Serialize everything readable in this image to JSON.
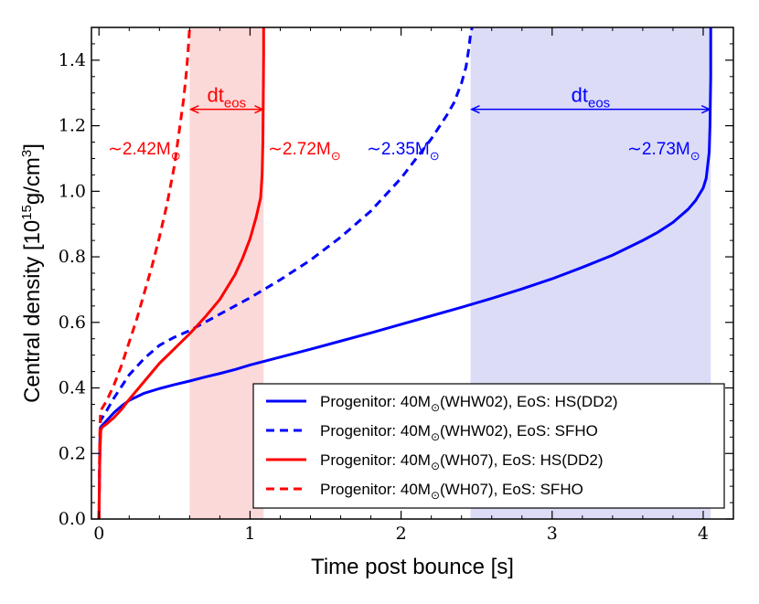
{
  "chart_data": {
    "type": "line",
    "xlabel": "Time post bounce [s]",
    "ylabel": "Central density [10",
    "ylabel_sup": "15",
    "ylabel_unit": "g/cm",
    "ylabel_unit_sup": "3",
    "ylabel_end": "]",
    "xlim": [
      -0.05,
      4.2
    ],
    "ylim": [
      0.0,
      1.5
    ],
    "xticks": [
      0,
      1,
      2,
      3,
      4
    ],
    "xtick_labels": [
      "0",
      "1",
      "2",
      "3",
      "4"
    ],
    "yticks": [
      0.0,
      0.2,
      0.4,
      0.6,
      0.8,
      1.0,
      1.2,
      1.4
    ],
    "ytick_labels": [
      "0.0",
      "0.2",
      "0.4",
      "0.6",
      "0.8",
      "1.0",
      "1.2",
      "1.4"
    ],
    "colors": {
      "red": "#ff0000",
      "blue": "#0000ff",
      "red_band": "#fcd9d9",
      "blue_band": "#dcdcf7"
    },
    "bands": [
      {
        "name": "red-band",
        "x0": 0.6,
        "x1": 1.09,
        "color": "#fcd9d9"
      },
      {
        "name": "blue-band",
        "x0": 2.46,
        "x1": 4.05,
        "color": "#dcdcf7"
      }
    ],
    "series": [
      {
        "name": "Progenitor: 40M☉(WHW02), EoS: HS(DD2)",
        "color": "#0000ff",
        "dash": false,
        "x": [
          0,
          0.003,
          0.006,
          0.01,
          0.03,
          0.06,
          0.1,
          0.15,
          0.2,
          0.3,
          0.4,
          0.5,
          0.6,
          0.7,
          0.8,
          0.9,
          1.0,
          1.2,
          1.4,
          1.6,
          1.8,
          2.0,
          2.2,
          2.4,
          2.6,
          2.8,
          3.0,
          3.2,
          3.4,
          3.6,
          3.7,
          3.8,
          3.9,
          3.95,
          4.0,
          4.02,
          4.03,
          4.04,
          4.045,
          4.05,
          4.05
        ],
        "y": [
          0.0,
          0.12,
          0.24,
          0.28,
          0.29,
          0.305,
          0.325,
          0.345,
          0.362,
          0.384,
          0.398,
          0.41,
          0.421,
          0.433,
          0.444,
          0.456,
          0.47,
          0.494,
          0.518,
          0.543,
          0.568,
          0.594,
          0.62,
          0.646,
          0.673,
          0.702,
          0.733,
          0.768,
          0.805,
          0.85,
          0.875,
          0.905,
          0.945,
          0.972,
          1.01,
          1.04,
          1.08,
          1.12,
          1.2,
          1.35,
          1.5
        ]
      },
      {
        "name": "Progenitor: 40M☉(WHW02), EoS: SFHO",
        "color": "#0000ff",
        "dash": true,
        "x": [
          0,
          0.005,
          0.01,
          0.05,
          0.1,
          0.2,
          0.3,
          0.4,
          0.5,
          0.6,
          0.7,
          0.8,
          0.9,
          1.0,
          1.2,
          1.4,
          1.6,
          1.8,
          2.0,
          2.1,
          2.2,
          2.3,
          2.35,
          2.4,
          2.43,
          2.45,
          2.46,
          2.47
        ],
        "y": [
          0.0,
          0.2,
          0.3,
          0.33,
          0.37,
          0.44,
          0.49,
          0.53,
          0.555,
          0.575,
          0.6,
          0.625,
          0.65,
          0.675,
          0.73,
          0.79,
          0.86,
          0.94,
          1.04,
          1.1,
          1.16,
          1.23,
          1.27,
          1.33,
          1.38,
          1.44,
          1.48,
          1.5
        ]
      },
      {
        "name": "Progenitor: 40M☉(WH07), EoS: HS(DD2)",
        "color": "#ff0000",
        "dash": false,
        "x": [
          0,
          0.004,
          0.008,
          0.012,
          0.02,
          0.05,
          0.1,
          0.15,
          0.2,
          0.3,
          0.4,
          0.5,
          0.6,
          0.7,
          0.8,
          0.9,
          0.95,
          1.0,
          1.04,
          1.07,
          1.08,
          1.085,
          1.088,
          1.09,
          1.09
        ],
        "y": [
          0.0,
          0.15,
          0.22,
          0.27,
          0.28,
          0.29,
          0.31,
          0.335,
          0.365,
          0.42,
          0.475,
          0.52,
          0.565,
          0.615,
          0.67,
          0.745,
          0.795,
          0.855,
          0.92,
          0.98,
          1.05,
          1.15,
          1.3,
          1.42,
          1.5
        ]
      },
      {
        "name": "Progenitor: 40M☉(WH07), EoS: SFHO",
        "color": "#ff0000",
        "dash": true,
        "x": [
          0,
          0.005,
          0.01,
          0.03,
          0.05,
          0.1,
          0.15,
          0.2,
          0.25,
          0.3,
          0.35,
          0.4,
          0.45,
          0.5,
          0.53,
          0.56,
          0.58,
          0.59,
          0.6
        ],
        "y": [
          0.0,
          0.25,
          0.33,
          0.345,
          0.36,
          0.41,
          0.47,
          0.54,
          0.61,
          0.69,
          0.77,
          0.86,
          0.96,
          1.08,
          1.18,
          1.28,
          1.37,
          1.43,
          1.5
        ]
      }
    ],
    "annotations": {
      "red_mass_left": "∼2.42M",
      "red_mass_right": "∼2.72M",
      "blue_mass_left": "∼2.35M",
      "blue_mass_right": "∼2.73M",
      "solar_symbol": "⊙",
      "dt_main": "dt",
      "dt_sub": "eos"
    },
    "legend_position": "lower-right",
    "legend": [
      {
        "text": "Progenitor: 40M",
        "sym": "⊙",
        "rest": "(WHW02), EoS: HS(DD2)",
        "color": "#0000ff",
        "dash": false
      },
      {
        "text": "Progenitor: 40M",
        "sym": "⊙",
        "rest": "(WHW02), EoS: SFHO",
        "color": "#0000ff",
        "dash": true
      },
      {
        "text": "Progenitor: 40M",
        "sym": "⊙",
        "rest": "(WH07), EoS: HS(DD2)",
        "color": "#ff0000",
        "dash": false
      },
      {
        "text": "Progenitor: 40M",
        "sym": "⊙",
        "rest": "(WH07), EoS: SFHO",
        "color": "#ff0000",
        "dash": true
      }
    ]
  }
}
